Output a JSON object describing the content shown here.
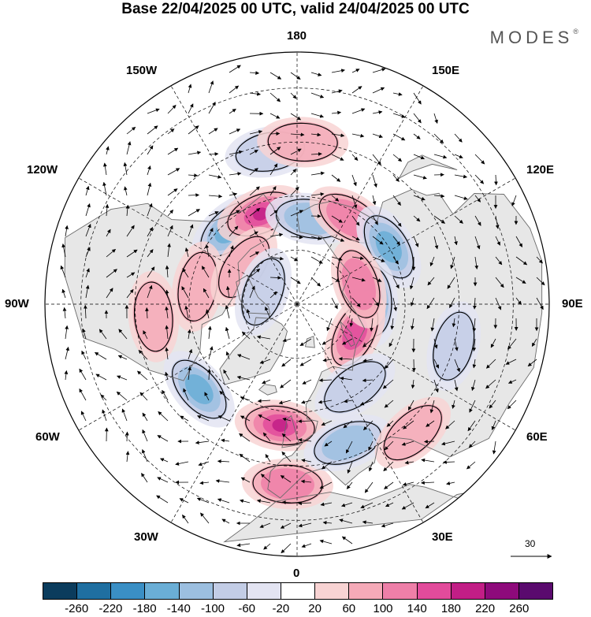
{
  "title": "Base 22/04/2025 00 UTC, valid 24/04/2025 00 UTC",
  "brand": "MODES",
  "brand_mark": "®",
  "longitude_labels": {
    "top": "180",
    "bottom": "0",
    "left": "90W",
    "right": "90E",
    "upper_left_1": "150W",
    "upper_left_2": "120W",
    "lower_left_1": "60W",
    "lower_left_2": "30W",
    "upper_right_1": "150E",
    "upper_right_2": "120E",
    "lower_right_1": "60E",
    "lower_right_2": "30E"
  },
  "wind_scale_label": "30",
  "colorbar": {
    "colors": [
      "#0b3c5d",
      "#1f6fa1",
      "#3a8fc5",
      "#6aaed6",
      "#9cbfe0",
      "#c3cde6",
      "#e3e4f2",
      "#ffffff",
      "#f8d3d3",
      "#f5aab8",
      "#ee7fa8",
      "#e24b9b",
      "#c21e86",
      "#8e0a7b",
      "#5a0a6e"
    ],
    "ticks": [
      "-260",
      "-220",
      "-180",
      "-140",
      "-100",
      "-60",
      "-20",
      "20",
      "60",
      "100",
      "140",
      "180",
      "220",
      "260"
    ]
  },
  "map_colors": {
    "land": "#e7e7e7",
    "ocean": "#ffffff",
    "coast": "#6b6b6b",
    "grid": "#000000",
    "contour": "#000000",
    "arrow": "#000000"
  },
  "anomalies": [
    {
      "kind": "neg",
      "level": 3,
      "lon": -138,
      "lat": 62
    },
    {
      "kind": "pos",
      "level": 4,
      "lon": -158,
      "lat": 63
    },
    {
      "kind": "neg",
      "level": 2,
      "lon": 171,
      "lat": 66
    },
    {
      "kind": "neg",
      "level": 1,
      "lon": -170,
      "lat": 47
    },
    {
      "kind": "pos",
      "level": 1,
      "lon": 178,
      "lat": 45
    },
    {
      "kind": "pos",
      "level": 2,
      "lon": 148,
      "lat": 62
    },
    {
      "kind": "neg",
      "level": 3,
      "lon": 122,
      "lat": 60
    },
    {
      "kind": "neg",
      "level": 4,
      "lon": 92,
      "lat": 69
    },
    {
      "kind": "pos",
      "level": 3,
      "lon": 63,
      "lat": 72
    },
    {
      "kind": "pos",
      "level": 2,
      "lon": 108,
      "lat": 72
    },
    {
      "kind": "neg",
      "level": 3,
      "lon": -49,
      "lat": 54
    },
    {
      "kind": "pos",
      "level": 4,
      "lon": -8,
      "lat": 56
    },
    {
      "kind": "pos",
      "level": 2,
      "lon": -3,
      "lat": 40
    },
    {
      "kind": "neg",
      "level": 2,
      "lon": 20,
      "lat": 49
    },
    {
      "kind": "neg",
      "level": 1,
      "lon": 35,
      "lat": 62
    },
    {
      "kind": "pos",
      "level": 1,
      "lon": 42,
      "lat": 42
    },
    {
      "kind": "pos",
      "level": 1,
      "lon": -85,
      "lat": 50
    },
    {
      "kind": "pos",
      "level": 1,
      "lon": -100,
      "lat": 62
    },
    {
      "kind": "neg",
      "level": 1,
      "lon": 75,
      "lat": 45
    },
    {
      "kind": "pos",
      "level": 1,
      "lon": -125,
      "lat": 72
    },
    {
      "kind": "neg",
      "level": 1,
      "lon": -110,
      "lat": 80
    }
  ]
}
